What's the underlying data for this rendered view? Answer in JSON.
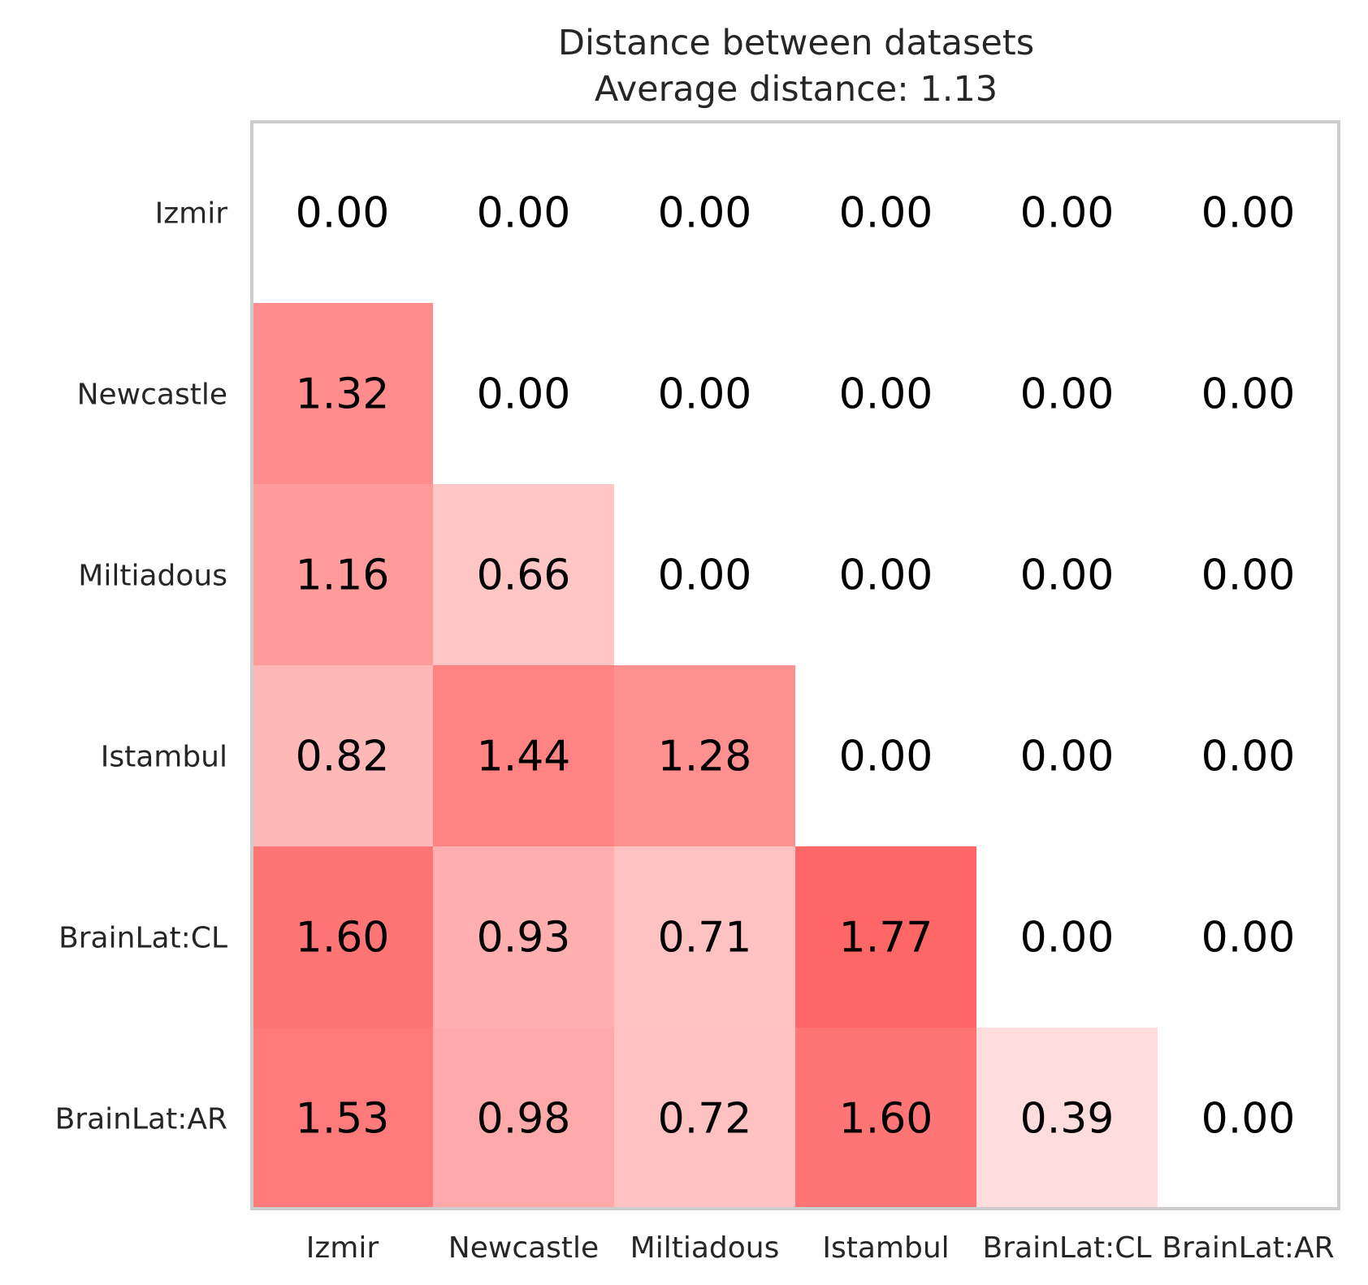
{
  "chart_data": {
    "type": "heatmap",
    "title": "Distance between datasets",
    "subtitle": "Average distance: 1.13",
    "xlabel": "",
    "ylabel": "",
    "x_categories": [
      "Izmir",
      "Newcastle",
      "Miltiadous",
      "Istambul",
      "BrainLat:CL",
      "BrainLat:AR"
    ],
    "y_categories": [
      "Izmir",
      "Newcastle",
      "Miltiadous",
      "Istambul",
      "BrainLat:CL",
      "BrainLat:AR"
    ],
    "values": [
      [
        0.0,
        0.0,
        0.0,
        0.0,
        0.0,
        0.0
      ],
      [
        1.32,
        0.0,
        0.0,
        0.0,
        0.0,
        0.0
      ],
      [
        1.16,
        0.66,
        0.0,
        0.0,
        0.0,
        0.0
      ],
      [
        0.82,
        1.44,
        1.28,
        0.0,
        0.0,
        0.0
      ],
      [
        1.6,
        0.93,
        0.71,
        1.77,
        0.0,
        0.0
      ],
      [
        1.53,
        0.98,
        0.72,
        1.6,
        0.39,
        0.0
      ]
    ],
    "value_format": "2 decimals",
    "color_scale": {
      "low": "#ffffff",
      "high": "#ff6666",
      "vmin": 0,
      "vmax": 1.77
    },
    "frame_color": "#cccccc",
    "grid": false,
    "legend": "none"
  }
}
